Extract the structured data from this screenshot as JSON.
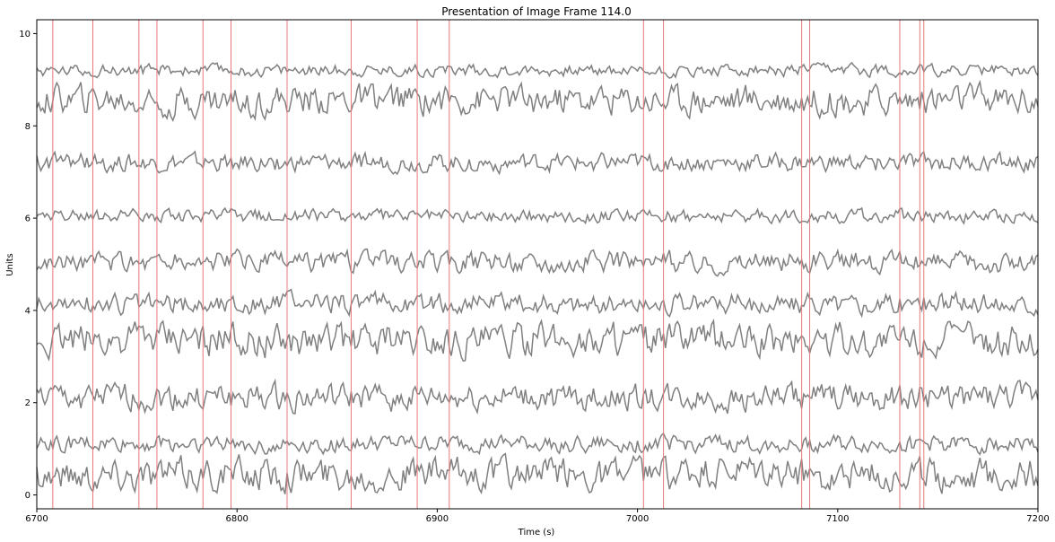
{
  "chart_data": {
    "type": "line",
    "title": "Presentation of Image Frame 114.0",
    "xlabel": "Time (s)",
    "ylabel": "Units",
    "xlim": [
      6700,
      7200
    ],
    "ylim": [
      -0.3,
      10.3
    ],
    "x_ticks": [
      6700,
      6800,
      6900,
      7000,
      7100,
      7200
    ],
    "y_ticks": [
      0,
      2,
      4,
      6,
      8,
      10
    ],
    "grid": false,
    "trace_color": "#808080",
    "event_line_color": "#e8787a",
    "event_times": [
      6708,
      6728,
      6751,
      6760,
      6783,
      6797,
      6825,
      6857,
      6890,
      6906,
      7003,
      7013,
      7082,
      7086,
      7131,
      7141,
      7143
    ],
    "series": [
      {
        "baseline": 0.45,
        "amplitude": 0.55
      },
      {
        "baseline": 1.1,
        "amplitude": 0.28
      },
      {
        "baseline": 2.1,
        "amplitude": 0.45
      },
      {
        "baseline": 3.35,
        "amplitude": 0.55
      },
      {
        "baseline": 4.15,
        "amplitude": 0.35
      },
      {
        "baseline": 5.05,
        "amplitude": 0.35
      },
      {
        "baseline": 6.05,
        "amplitude": 0.22
      },
      {
        "baseline": 7.2,
        "amplitude": 0.3
      },
      {
        "baseline": 8.55,
        "amplitude": 0.5
      },
      {
        "baseline": 9.2,
        "amplitude": 0.2
      }
    ]
  }
}
